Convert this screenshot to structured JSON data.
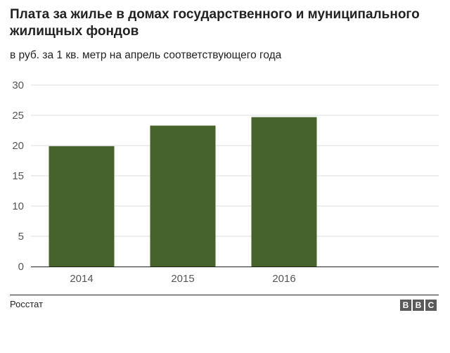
{
  "header": {
    "title": "Плата за жилье в домах государственного и муниципального жилищных фондов",
    "subtitle": "в руб. за 1 кв. метр на апрель соответствующего года"
  },
  "footer": {
    "source": "Росстат",
    "logo_letters": [
      "B",
      "B",
      "C"
    ]
  },
  "colors": {
    "bar": "#45632b",
    "grid": "#dddddd",
    "axis": "#222222",
    "text": "#222222"
  },
  "chart_data": {
    "type": "bar",
    "title": "Плата за жилье в домах государственного и муниципального жилищных фондов",
    "subtitle": "в руб. за 1 кв. метр на апрель соответствующего года",
    "categories": [
      "2014",
      "2015",
      "2016"
    ],
    "values": [
      19.9,
      23.3,
      24.7
    ],
    "ylim": [
      0,
      30
    ],
    "yticks": [
      0,
      5,
      10,
      15,
      20,
      25,
      30
    ],
    "xlabel": "",
    "ylabel": "",
    "grid": true,
    "legend": "none"
  }
}
